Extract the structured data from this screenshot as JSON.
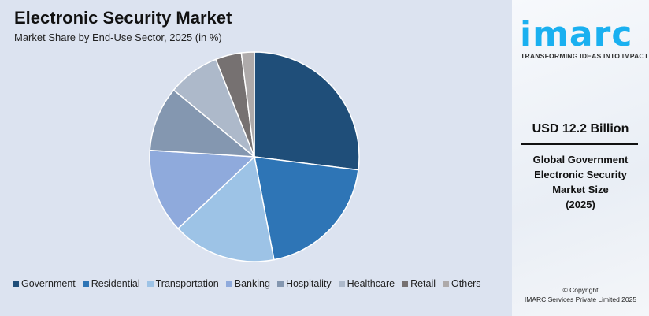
{
  "header": {
    "title": "Electronic Security Market",
    "subtitle": "Market Share by End-Use Sector, 2025 (in %)"
  },
  "chart_data": {
    "type": "pie",
    "title": "Electronic Security Market",
    "subtitle": "Market Share by End-Use Sector, 2025 (in %)",
    "categories": [
      "Government",
      "Residential",
      "Transportation",
      "Banking",
      "Hospitality",
      "Healthcare",
      "Retail",
      "Others"
    ],
    "values": [
      27,
      20,
      16,
      13,
      10,
      8,
      4,
      2
    ],
    "colors": [
      "#1f4e79",
      "#2e75b6",
      "#9dc3e6",
      "#8faadc",
      "#8497b0",
      "#adb9ca",
      "#767171",
      "#aeaaaa"
    ],
    "start": "top, clockwise",
    "legend": "bottom"
  },
  "sidebar": {
    "logo": "imarc",
    "tagline": "TRANSFORMING IDEAS INTO IMPACT",
    "value": "USD 12.2 Billion",
    "desc_lines": [
      "Global Government",
      "Electronic Security",
      "Market Size",
      "(2025)"
    ],
    "copyright": "© Copyright",
    "company": "IMARC Services Private Limited 2025"
  }
}
